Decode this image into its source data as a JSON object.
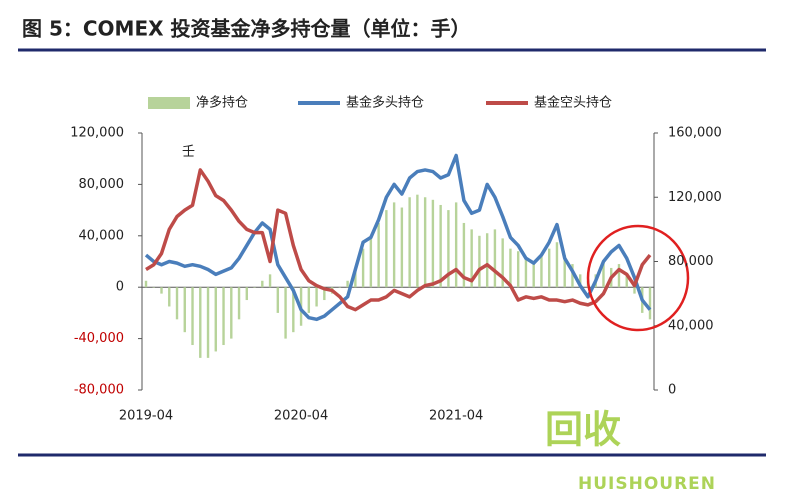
{
  "chart_data": {
    "type": "bar-line",
    "title": "图 5：COMEX 投资基金净多持仓量（单位：手）",
    "annotation": "壬",
    "watermark": [
      "回收",
      "HUISHOUREN"
    ],
    "categories": [
      "2019-04",
      null,
      null,
      null,
      null,
      null,
      null,
      null,
      null,
      null,
      null,
      null,
      null,
      null,
      null,
      null,
      null,
      null,
      null,
      null,
      "2020-04",
      null,
      null,
      null,
      null,
      null,
      null,
      null,
      null,
      null,
      null,
      null,
      null,
      null,
      null,
      null,
      null,
      null,
      null,
      null,
      "2021-04",
      null,
      null,
      null,
      null,
      null,
      null,
      null,
      null,
      null,
      null,
      null,
      null,
      null,
      null,
      null,
      null,
      null,
      null,
      null,
      null,
      null,
      null,
      null,
      null,
      null
    ],
    "series": [
      {
        "name": "净多持仓",
        "kind": "bar",
        "color": "#b7d39a",
        "axis": "y",
        "values": [
          5000,
          0,
          -5000,
          -15000,
          -25000,
          -35000,
          -45000,
          -55000,
          -55000,
          -50000,
          -45000,
          -40000,
          -25000,
          -10000,
          0,
          5000,
          10000,
          -20000,
          -40000,
          -35000,
          -30000,
          -20000,
          -15000,
          -10000,
          -5000,
          0,
          5000,
          15000,
          30000,
          40000,
          50000,
          60000,
          66000,
          62000,
          70000,
          72000,
          70000,
          68000,
          64000,
          60000,
          66000,
          50000,
          45000,
          40000,
          42000,
          45000,
          38000,
          30000,
          28000,
          22000,
          20000,
          25000,
          30000,
          35000,
          25000,
          18000,
          10000,
          5000,
          10000,
          20000,
          15000,
          18000,
          10000,
          -5000,
          -20000,
          -25000
        ]
      },
      {
        "name": "基金多头持仓",
        "kind": "line",
        "color": "#4a7ebb",
        "axis": "y2",
        "values": [
          84000,
          80000,
          78000,
          80000,
          79000,
          77000,
          78000,
          77000,
          75000,
          72000,
          74000,
          76000,
          82000,
          90000,
          98000,
          104000,
          100000,
          78000,
          70000,
          62000,
          50000,
          45000,
          44000,
          46000,
          50000,
          54000,
          58000,
          75000,
          92000,
          95000,
          106000,
          120000,
          128000,
          122000,
          132000,
          136000,
          137000,
          136000,
          132000,
          134000,
          146000,
          118000,
          110000,
          112000,
          128000,
          120000,
          108000,
          95000,
          90000,
          82000,
          79000,
          84000,
          92000,
          103000,
          82000,
          74000,
          65000,
          58000,
          68000,
          80000,
          86000,
          90000,
          82000,
          70000,
          56000,
          50000
        ]
      },
      {
        "name": "基金空头持仓",
        "kind": "line",
        "color": "#be4b48",
        "axis": "y2",
        "values": [
          75000,
          78000,
          85000,
          100000,
          108000,
          112000,
          115000,
          137000,
          130000,
          121000,
          118000,
          112000,
          105000,
          100000,
          98000,
          98000,
          80000,
          112000,
          110000,
          90000,
          75000,
          68000,
          65000,
          63000,
          62000,
          58000,
          52000,
          50000,
          53000,
          56000,
          56000,
          58000,
          62000,
          60000,
          58000,
          62000,
          65000,
          66000,
          68000,
          72000,
          75000,
          70000,
          68000,
          75000,
          78000,
          74000,
          70000,
          65000,
          56000,
          58000,
          57000,
          58000,
          56000,
          56000,
          55000,
          56000,
          54000,
          53000,
          55000,
          60000,
          70000,
          75000,
          72000,
          65000,
          78000,
          84000
        ]
      }
    ],
    "ylim": [
      -80000,
      120000
    ],
    "yticks": [
      {
        "value": -80000,
        "label": "-80,000"
      },
      {
        "value": -40000,
        "label": "-40,000"
      },
      0,
      {
        "value": 40000,
        "label": "40,000"
      },
      {
        "value": 80000,
        "label": "80,000"
      },
      {
        "value": 120000,
        "label": "120,000"
      }
    ],
    "y2lim": [
      0,
      160000
    ],
    "y2ticks": [
      0,
      {
        "value": 40000,
        "label": "40,000"
      },
      {
        "value": 80000,
        "label": "80,000"
      },
      {
        "value": 120000,
        "label": "120,000"
      },
      {
        "value": 160000,
        "label": "160,000"
      }
    ],
    "negative_tick_color": "#c00000",
    "grid": false,
    "legend": "top"
  }
}
